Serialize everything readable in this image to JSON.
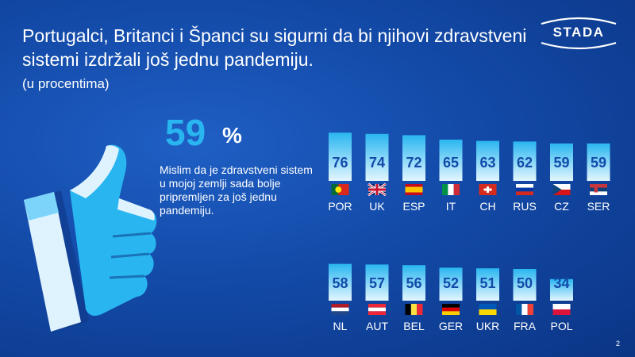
{
  "header": {
    "title": "Portugalci, Britanci i Španci su sigurni da bi njihovi zdravstveni sistemi izdržali još jednu pandemiju.",
    "subtitle": "(u procentima)"
  },
  "brand": {
    "logo_text": "STADA"
  },
  "highlight": {
    "value": "59",
    "unit": "%",
    "statement": "Mislim da je zdravstveni sistem u mojoj zemlji sada bolje pripremljen za još jednu pandemiju."
  },
  "page_number": "2",
  "colors": {
    "bar_top": "#29b6f0",
    "bar_bottom": "#e3f6ff",
    "value_text": "#134aa8",
    "accent": "#29b6f0"
  },
  "chart_data": {
    "type": "bar",
    "ylabel": "",
    "ylim": [
      0,
      100
    ],
    "rows": [
      {
        "categories": [
          "POR",
          "UK",
          "ESP",
          "IT",
          "CH",
          "RUS",
          "CZ",
          "SER"
        ],
        "values": [
          76,
          74,
          72,
          65,
          63,
          62,
          59,
          59
        ],
        "flags": [
          "portugal-flag-icon",
          "uk-flag-icon",
          "spain-flag-icon",
          "italy-flag-icon",
          "switzerland-flag-icon",
          "russia-flag-icon",
          "czech-flag-icon",
          "serbia-flag-icon"
        ]
      },
      {
        "categories": [
          "NL",
          "AUT",
          "BEL",
          "GER",
          "UKR",
          "FRA",
          "POL"
        ],
        "values": [
          58,
          57,
          56,
          52,
          51,
          50,
          34
        ],
        "flags": [
          "netherlands-flag-icon",
          "austria-flag-icon",
          "belgium-flag-icon",
          "germany-flag-icon",
          "ukraine-flag-icon",
          "france-flag-icon",
          "poland-flag-icon"
        ]
      }
    ]
  }
}
